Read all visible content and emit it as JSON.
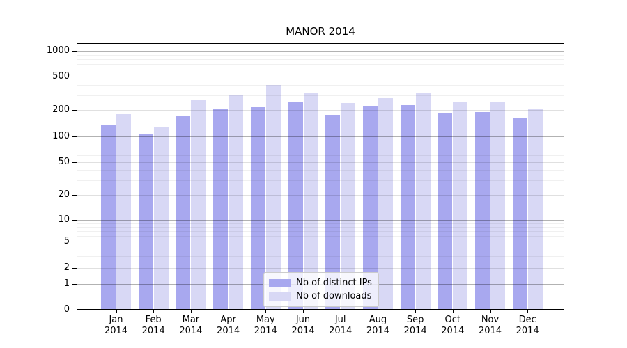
{
  "chart_data": {
    "type": "bar",
    "title": "MANOR 2014",
    "yscale": "symlog",
    "grid": "horizontal major and minor",
    "legend_position": "lower center inside plot",
    "x_label_line2": "2014",
    "categories": [
      "Jan",
      "Feb",
      "Mar",
      "Apr",
      "May",
      "Jun",
      "Jul",
      "Aug",
      "Sep",
      "Oct",
      "Nov",
      "Dec"
    ],
    "series": [
      {
        "name": "Nb of distinct IPs",
        "color": "#a8a8ef",
        "values": [
          135,
          107,
          170,
          205,
          215,
          250,
          176,
          225,
          230,
          185,
          190,
          160
        ]
      },
      {
        "name": "Nb of downloads",
        "color": "#d8d8f5",
        "values": [
          180,
          130,
          260,
          300,
          395,
          315,
          240,
          275,
          320,
          245,
          250,
          205
        ]
      }
    ],
    "yticks": [
      0,
      1,
      2,
      5,
      10,
      20,
      50,
      100,
      200,
      500,
      1000
    ],
    "ylim": [
      0,
      1230
    ]
  }
}
